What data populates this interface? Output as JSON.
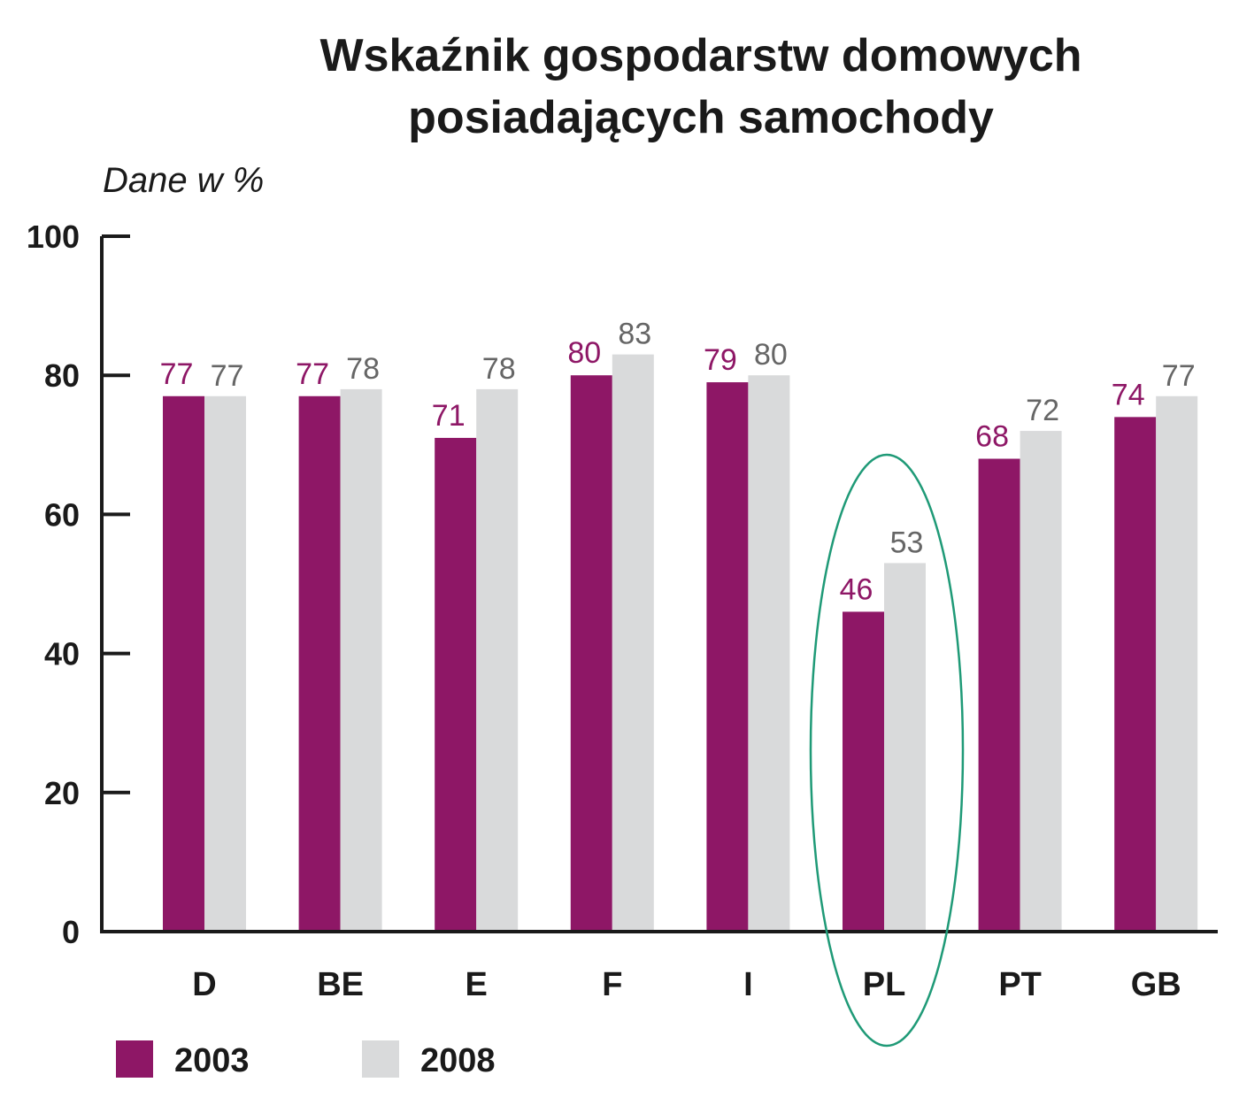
{
  "colors": {
    "series_2003": "#8e1766",
    "series_2008": "#d9dadb",
    "label_2003": "#8e1766",
    "label_2008": "#666666",
    "axis": "#1a1a1a",
    "highlight_ellipse": "#1f9a77"
  },
  "chart_data": {
    "type": "bar",
    "title": "Wskaźnik gospodarstw domowych posiadających samochody",
    "title_lines": [
      "Wskaźnik gospodarstw domowych",
      "posiadających samochody"
    ],
    "subtitle": "Dane w %",
    "xlabel": "",
    "ylabel": "Dane w %",
    "ylim": [
      0,
      100
    ],
    "yticks": [
      0,
      20,
      40,
      60,
      80,
      100
    ],
    "grid": false,
    "legend_position": "bottom-left",
    "categories": [
      "D",
      "BE",
      "E",
      "F",
      "I",
      "PL",
      "PT",
      "GB"
    ],
    "series": [
      {
        "name": "2003",
        "values": [
          77,
          77,
          71,
          80,
          79,
          46,
          68,
          74
        ]
      },
      {
        "name": "2008",
        "values": [
          77,
          78,
          78,
          83,
          80,
          53,
          72,
          77
        ]
      }
    ],
    "annotations": [
      {
        "type": "ellipse",
        "target_category": "PL",
        "description": "green ellipse highlighting Poland"
      }
    ]
  }
}
